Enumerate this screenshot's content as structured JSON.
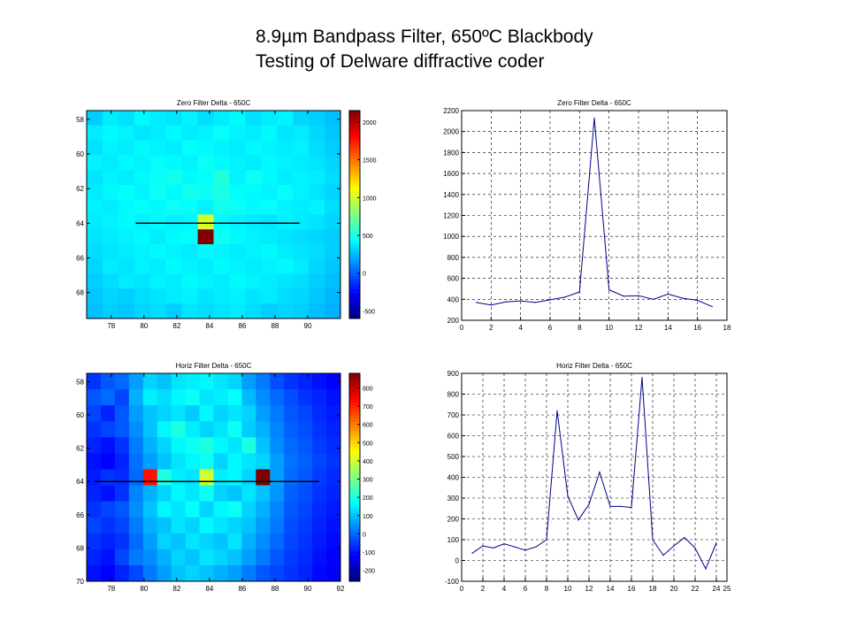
{
  "slide": {
    "title_line1": "8.9µm Bandpass Filter, 650ºC Blackbody",
    "title_line2": "Testing of Delware diffractive coder"
  },
  "colors": {
    "line_series": "#00008b",
    "profile_line": "#000000",
    "grid": "#000000"
  },
  "chart_data": [
    {
      "type": "heatmap",
      "title": "Zero Filter Delta - 650C",
      "xlabel": "",
      "ylabel": "",
      "x_range": [
        76.5,
        92
      ],
      "y_range": [
        57.5,
        69.5
      ],
      "x_ticks": [
        78,
        80,
        82,
        84,
        86,
        88,
        90
      ],
      "y_ticks": [
        58,
        60,
        62,
        64,
        66,
        68
      ],
      "colorbar": {
        "min": -600,
        "max": 2150,
        "ticks": [
          -500,
          0,
          500,
          1000,
          1500,
          2000
        ]
      },
      "profile_line": {
        "y": 64,
        "x_start": 79.5,
        "x_end": 89.5
      },
      "values": [
        [
          300,
          380,
          350,
          420,
          380,
          360,
          400,
          340,
          380,
          420,
          350,
          380,
          400,
          320,
          300,
          260
        ],
        [
          380,
          420,
          400,
          360,
          380,
          420,
          380,
          400,
          440,
          400,
          380,
          420,
          360,
          380,
          330,
          280
        ],
        [
          350,
          400,
          380,
          420,
          400,
          380,
          440,
          420,
          400,
          380,
          420,
          400,
          380,
          400,
          340,
          300
        ],
        [
          400,
          380,
          420,
          400,
          440,
          420,
          400,
          460,
          420,
          400,
          380,
          420,
          400,
          380,
          360,
          320
        ],
        [
          360,
          400,
          380,
          420,
          450,
          480,
          420,
          440,
          520,
          400,
          460,
          420,
          380,
          400,
          380,
          340
        ],
        [
          380,
          420,
          440,
          400,
          460,
          420,
          480,
          460,
          500,
          440,
          420,
          400,
          440,
          400,
          360,
          320
        ],
        [
          400,
          380,
          420,
          440,
          420,
          460,
          440,
          400,
          480,
          460,
          420,
          440,
          400,
          380,
          400,
          340
        ],
        [
          380,
          400,
          420,
          400,
          420,
          400,
          410,
          1000,
          420,
          400,
          380,
          360,
          400,
          380,
          360,
          320
        ],
        [
          360,
          380,
          400,
          420,
          380,
          420,
          440,
          2150,
          470,
          420,
          400,
          380,
          360,
          340,
          320,
          300
        ],
        [
          340,
          360,
          380,
          400,
          420,
          400,
          380,
          420,
          400,
          380,
          400,
          420,
          380,
          360,
          340,
          300
        ],
        [
          320,
          380,
          360,
          400,
          380,
          420,
          400,
          380,
          420,
          400,
          380,
          400,
          420,
          380,
          320,
          280
        ],
        [
          300,
          340,
          380,
          360,
          400,
          380,
          420,
          400,
          380,
          420,
          400,
          380,
          360,
          340,
          300,
          260
        ],
        [
          280,
          320,
          300,
          340,
          360,
          380,
          400,
          360,
          380,
          400,
          360,
          380,
          340,
          320,
          280,
          240
        ],
        [
          260,
          300,
          280,
          320,
          340,
          300,
          360,
          340,
          360,
          380,
          340,
          300,
          320,
          300,
          260,
          220
        ]
      ]
    },
    {
      "type": "line",
      "title": "Zero Filter Delta - 650C",
      "xlabel": "",
      "ylabel": "",
      "xlim": [
        0,
        18
      ],
      "ylim": [
        200,
        2200
      ],
      "x_ticks": [
        0,
        2,
        4,
        6,
        8,
        10,
        12,
        14,
        16,
        18
      ],
      "y_ticks": [
        200,
        400,
        600,
        800,
        1000,
        1200,
        1400,
        1600,
        1800,
        2000,
        2200
      ],
      "grid": true,
      "x": [
        1,
        2,
        3,
        4,
        5,
        6,
        7,
        8,
        9,
        10,
        11,
        12,
        13,
        14,
        15,
        16,
        17
      ],
      "values": [
        370,
        345,
        375,
        385,
        370,
        395,
        420,
        470,
        2130,
        490,
        430,
        435,
        400,
        450,
        410,
        390,
        330
      ]
    },
    {
      "type": "heatmap",
      "title": "Horiz Filter Delta - 650C",
      "xlabel": "",
      "ylabel": "",
      "x_range": [
        76.5,
        92
      ],
      "y_range": [
        57.5,
        70
      ],
      "x_ticks": [
        78,
        80,
        82,
        84,
        86,
        88,
        90,
        92
      ],
      "y_ticks": [
        58,
        60,
        62,
        64,
        66,
        68,
        70
      ],
      "colorbar": {
        "min": -260,
        "max": 880,
        "ticks": [
          -200,
          -100,
          0,
          100,
          200,
          300,
          400,
          500,
          600,
          700,
          800
        ]
      },
      "profile_line": {
        "y": 64,
        "x_start": 77.0,
        "x_end": 90.7
      },
      "values": [
        [
          -60,
          -20,
          0,
          60,
          120,
          100,
          140,
          150,
          160,
          140,
          120,
          60,
          20,
          -30,
          -60,
          -80,
          -100,
          -120
        ],
        [
          -20,
          0,
          -40,
          80,
          150,
          130,
          160,
          180,
          140,
          150,
          170,
          90,
          40,
          0,
          -30,
          -60,
          -80,
          -100
        ],
        [
          -40,
          -80,
          -20,
          60,
          100,
          120,
          140,
          110,
          160,
          120,
          140,
          120,
          60,
          20,
          -20,
          -40,
          -70,
          -90
        ],
        [
          -60,
          -40,
          -20,
          40,
          100,
          160,
          200,
          150,
          120,
          140,
          180,
          110,
          80,
          30,
          -10,
          -30,
          -60,
          -80
        ],
        [
          -80,
          -100,
          -60,
          20,
          80,
          120,
          160,
          180,
          200,
          160,
          140,
          200,
          100,
          40,
          0,
          -20,
          -50,
          -70
        ],
        [
          -100,
          -120,
          -80,
          10,
          60,
          100,
          140,
          160,
          180,
          120,
          160,
          140,
          120,
          60,
          10,
          -10,
          -40,
          -60
        ],
        [
          -90,
          -60,
          -70,
          0,
          720,
          200,
          150,
          140,
          400,
          150,
          160,
          120,
          880,
          60,
          0,
          -20,
          -50,
          -70
        ],
        [
          -80,
          -100,
          -60,
          30,
          80,
          120,
          160,
          140,
          180,
          120,
          100,
          140,
          100,
          50,
          -10,
          -30,
          -60,
          -80
        ],
        [
          -60,
          -40,
          -20,
          40,
          100,
          160,
          140,
          170,
          120,
          160,
          180,
          120,
          80,
          30,
          -20,
          -40,
          -70,
          -90
        ],
        [
          -40,
          -60,
          -40,
          20,
          80,
          100,
          140,
          120,
          160,
          140,
          120,
          100,
          60,
          20,
          -30,
          -50,
          -80,
          -100
        ],
        [
          -60,
          -80,
          -60,
          0,
          60,
          120,
          100,
          140,
          120,
          100,
          140,
          80,
          40,
          0,
          -40,
          -60,
          -90,
          -110
        ],
        [
          -80,
          -100,
          -40,
          20,
          40,
          80,
          120,
          100,
          140,
          120,
          100,
          60,
          20,
          -20,
          -50,
          -70,
          -100,
          -120
        ],
        [
          -100,
          -120,
          -80,
          -40,
          20,
          60,
          100,
          120,
          100,
          80,
          60,
          20,
          -20,
          -40,
          -60,
          -80,
          -110,
          -130
        ]
      ]
    },
    {
      "type": "line",
      "title": "Horiz Filter Delta - 650C",
      "xlabel": "",
      "ylabel": "",
      "xlim": [
        0,
        25
      ],
      "ylim": [
        -100,
        900
      ],
      "x_ticks": [
        0,
        2,
        4,
        6,
        8,
        10,
        12,
        14,
        16,
        18,
        20,
        22,
        24,
        25
      ],
      "y_ticks": [
        -100,
        0,
        100,
        200,
        300,
        400,
        500,
        600,
        700,
        800,
        900
      ],
      "grid": true,
      "x": [
        1,
        2,
        3,
        4,
        5,
        6,
        7,
        8,
        9,
        10,
        11,
        12,
        13,
        14,
        15,
        16,
        17,
        18,
        19,
        20,
        21,
        22,
        23,
        24
      ],
      "values": [
        35,
        70,
        60,
        80,
        65,
        50,
        65,
        100,
        720,
        310,
        195,
        270,
        425,
        260,
        260,
        255,
        880,
        100,
        25,
        70,
        110,
        60,
        -40,
        85
      ]
    }
  ]
}
